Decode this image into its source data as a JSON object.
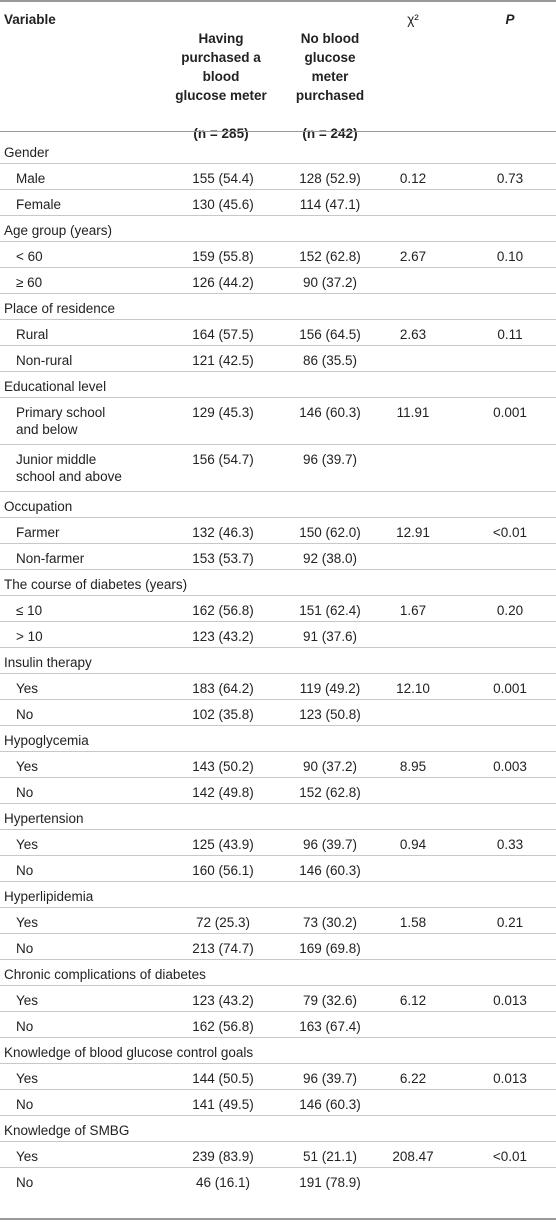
{
  "header": {
    "variable": "Variable",
    "col1_line1": "Having\npurchased a\nblood\nglucose meter",
    "col1_n": "(n = 285)",
    "col2_line1": "No blood\nglucose\nmeter\npurchased",
    "col2_n": "(n = 242)",
    "chi": "χ²",
    "p": "P"
  },
  "sections": [
    {
      "label": "Gender",
      "rows": [
        {
          "label": "Male",
          "a": "155 (54.4)",
          "b": "128 (52.9)",
          "chi": "0.12",
          "p": "0.73"
        },
        {
          "label": "Female",
          "a": "130 (45.6)",
          "b": "114 (47.1)",
          "chi": "",
          "p": ""
        }
      ]
    },
    {
      "label": "Age group (years)",
      "rows": [
        {
          "label": "< 60",
          "a": "159 (55.8)",
          "b": "152 (62.8)",
          "chi": "2.67",
          "p": "0.10"
        },
        {
          "label": "≥ 60",
          "a": "126 (44.2)",
          "b": "90 (37.2)",
          "chi": "",
          "p": ""
        }
      ]
    },
    {
      "label": "Place of residence",
      "rows": [
        {
          "label": "Rural",
          "a": "164 (57.5)",
          "b": "156 (64.5)",
          "chi": "2.63",
          "p": "0.11"
        },
        {
          "label": "Non-rural",
          "a": "121 (42.5)",
          "b": "86 (35.5)",
          "chi": "",
          "p": ""
        }
      ]
    },
    {
      "label": "Educational level",
      "rows": [
        {
          "label": "Primary school\nand below",
          "a": "129 (45.3)",
          "b": "146 (60.3)",
          "chi": "11.91",
          "p": "0.001"
        },
        {
          "label": "Junior middle\nschool and above",
          "a": "156 (54.7)",
          "b": "96 (39.7)",
          "chi": "",
          "p": ""
        }
      ]
    },
    {
      "label": "Occupation",
      "rows": [
        {
          "label": "Farmer",
          "a": "132 (46.3)",
          "b": "150 (62.0)",
          "chi": "12.91",
          "p": "<0.01"
        },
        {
          "label": "Non-farmer",
          "a": "153 (53.7)",
          "b": "92 (38.0)",
          "chi": "",
          "p": ""
        }
      ]
    },
    {
      "label": "The course of diabetes (years)",
      "rows": [
        {
          "label": "≤ 10",
          "a": "162 (56.8)",
          "b": "151 (62.4)",
          "chi": "1.67",
          "p": "0.20"
        },
        {
          "label": "> 10",
          "a": "123 (43.2)",
          "b": "91 (37.6)",
          "chi": "",
          "p": ""
        }
      ]
    },
    {
      "label": "Insulin therapy",
      "rows": [
        {
          "label": "Yes",
          "a": "183 (64.2)",
          "b": "119 (49.2)",
          "chi": "12.10",
          "p": "0.001"
        },
        {
          "label": "No",
          "a": "102 (35.8)",
          "b": "123 (50.8)",
          "chi": "",
          "p": ""
        }
      ]
    },
    {
      "label": "Hypoglycemia",
      "rows": [
        {
          "label": "Yes",
          "a": "143 (50.2)",
          "b": "90 (37.2)",
          "chi": "8.95",
          "p": "0.003"
        },
        {
          "label": "No",
          "a": "142 (49.8)",
          "b": "152 (62.8)",
          "chi": "",
          "p": ""
        }
      ]
    },
    {
      "label": "Hypertension",
      "rows": [
        {
          "label": "Yes",
          "a": "125 (43.9)",
          "b": "96 (39.7)",
          "chi": "0.94",
          "p": "0.33"
        },
        {
          "label": "No",
          "a": "160 (56.1)",
          "b": "146 (60.3)",
          "chi": "",
          "p": ""
        }
      ]
    },
    {
      "label": "Hyperlipidemia",
      "rows": [
        {
          "label": "Yes",
          "a": "72 (25.3)",
          "b": "73 (30.2)",
          "chi": "1.58",
          "p": "0.21"
        },
        {
          "label": "No",
          "a": "213 (74.7)",
          "b": "169 (69.8)",
          "chi": "",
          "p": ""
        }
      ]
    },
    {
      "label": "Chronic complications of diabetes",
      "rows": [
        {
          "label": "Yes",
          "a": "123 (43.2)",
          "b": "79 (32.6)",
          "chi": "6.12",
          "p": "0.013"
        },
        {
          "label": "No",
          "a": "162 (56.8)",
          "b": "163 (67.4)",
          "chi": "",
          "p": ""
        }
      ]
    },
    {
      "label": "Knowledge of blood glucose control goals",
      "rows": [
        {
          "label": "Yes",
          "a": "144 (50.5)",
          "b": "96 (39.7)",
          "chi": "6.22",
          "p": "0.013"
        },
        {
          "label": "No",
          "a": "141 (49.5)",
          "b": "146 (60.3)",
          "chi": "",
          "p": ""
        }
      ]
    },
    {
      "label": "Knowledge of SMBG",
      "rows": [
        {
          "label": "Yes",
          "a": "239 (83.9)",
          "b": "51 (21.1)",
          "chi": "208.47",
          "p": "<0.01"
        },
        {
          "label": "No",
          "a": "46 (16.1)",
          "b": "191 (78.9)",
          "chi": "",
          "p": ""
        }
      ]
    }
  ]
}
